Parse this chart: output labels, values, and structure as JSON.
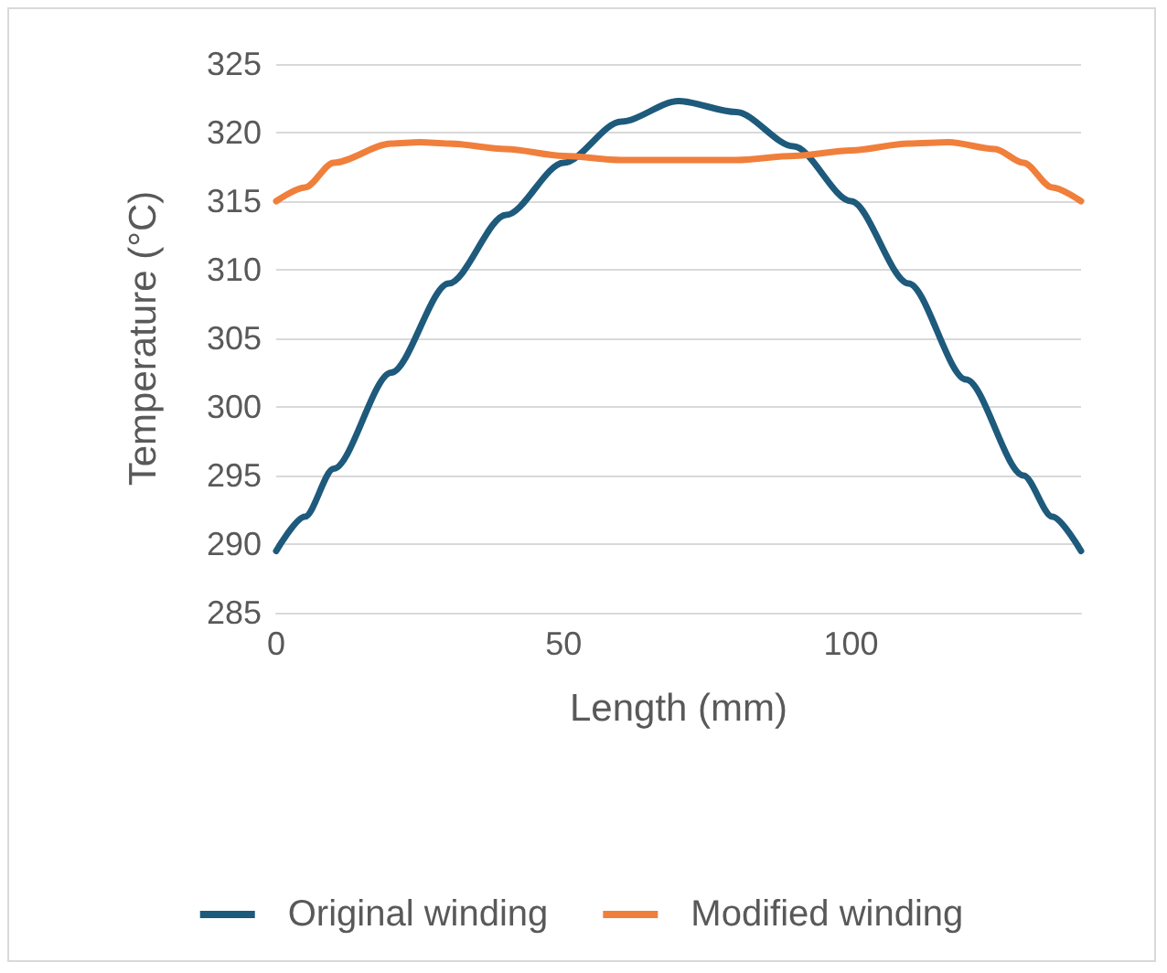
{
  "chart_data": {
    "type": "line",
    "xlabel": "Length (mm)",
    "ylabel": "Temperature (°C)",
    "xlim": [
      0,
      140
    ],
    "xticks": [
      0,
      50,
      100
    ],
    "ylim": [
      285,
      325
    ],
    "yticks": [
      285,
      290,
      295,
      300,
      305,
      310,
      315,
      320,
      325
    ],
    "grid": "y",
    "legend": "bottom",
    "marker": "none",
    "line_style": "solid",
    "series": [
      {
        "name": "Original winding",
        "color": "#1d5a7c",
        "x": [
          0,
          5,
          10,
          20,
          30,
          40,
          50,
          60,
          70,
          80,
          90,
          100,
          110,
          120,
          130,
          135,
          140
        ],
        "values": [
          289.5,
          292,
          295.5,
          302.5,
          309,
          314,
          317.8,
          320.8,
          322.3,
          321.5,
          319,
          315,
          309,
          302,
          295,
          292,
          289.5
        ]
      },
      {
        "name": "Modified winding",
        "color": "#f07f3c",
        "x": [
          0,
          5,
          10,
          20,
          25,
          30,
          40,
          50,
          60,
          70,
          80,
          90,
          100,
          110,
          117,
          125,
          130,
          135,
          140
        ],
        "values": [
          315,
          316,
          317.8,
          319.2,
          319.3,
          319.2,
          318.8,
          318.3,
          318,
          318,
          318,
          318.3,
          318.7,
          319.2,
          319.3,
          318.8,
          317.8,
          316,
          315
        ]
      }
    ]
  }
}
